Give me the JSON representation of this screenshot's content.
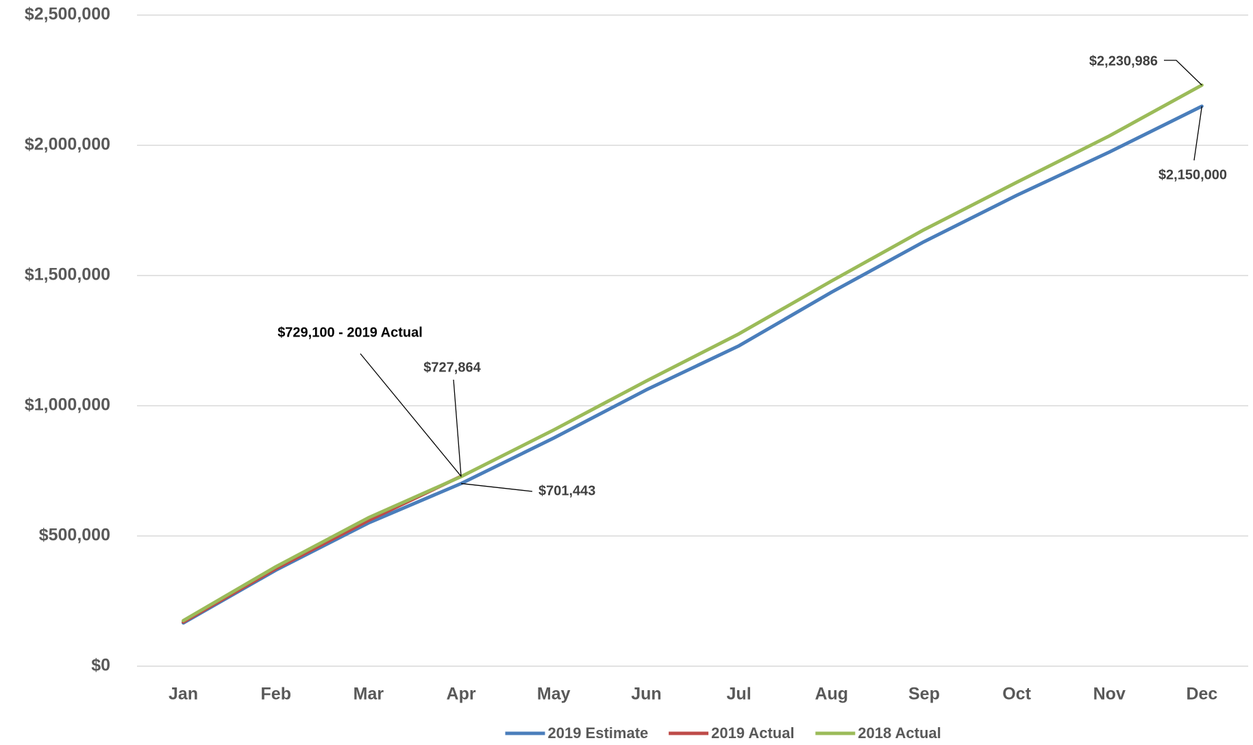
{
  "chart_data": {
    "type": "line",
    "categories": [
      "Jan",
      "Feb",
      "Mar",
      "Apr",
      "May",
      "Jun",
      "Jul",
      "Aug",
      "Sep",
      "Oct",
      "Nov",
      "Dec"
    ],
    "series": [
      {
        "name": "2019 Estimate",
        "color": "#4a7ebb",
        "values": [
          166000,
          369000,
          550000,
          701443,
          876000,
          1061000,
          1230000,
          1436000,
          1630000,
          1808000,
          1974000,
          2150000
        ],
        "value_labels": [
          null,
          null,
          null,
          "$701,443",
          null,
          null,
          null,
          null,
          null,
          null,
          null,
          "$2,150,000"
        ]
      },
      {
        "name": "2019 Actual",
        "color": "#be4b48",
        "values": [
          170000,
          375000,
          560000,
          729100,
          null,
          null,
          null,
          null,
          null,
          null,
          null,
          null
        ],
        "value_labels": [
          null,
          null,
          null,
          "$729,100 - 2019 Actual",
          null,
          null,
          null,
          null,
          null,
          null,
          null,
          null
        ]
      },
      {
        "name": "2018 Actual",
        "color": "#9bbb59",
        "values": [
          175000,
          382000,
          570000,
          727864,
          907000,
          1095000,
          1276000,
          1479000,
          1676000,
          1858000,
          2036000,
          2230986
        ],
        "value_labels": [
          null,
          null,
          null,
          "$727,864",
          null,
          null,
          null,
          null,
          null,
          null,
          null,
          "$2,230,986"
        ]
      }
    ],
    "ylim": [
      0,
      2500000
    ],
    "yticks": [
      {
        "value": 0,
        "label": "$0"
      },
      {
        "value": 500000,
        "label": "$500,000"
      },
      {
        "value": 1000000,
        "label": "$1,000,000"
      },
      {
        "value": 1500000,
        "label": "$1,500,000"
      },
      {
        "value": 2000000,
        "label": "$2,000,000"
      },
      {
        "value": 2500000,
        "label": "$2,500,000"
      }
    ],
    "grid": true,
    "legend": "bottom"
  }
}
